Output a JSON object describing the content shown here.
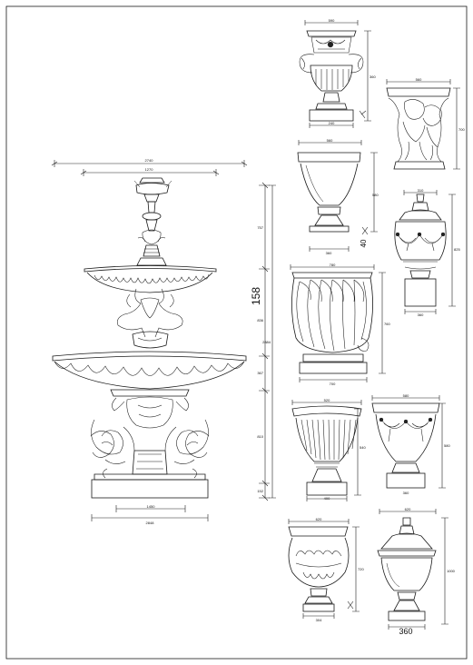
{
  "drawing": {
    "line_color": "#1a1a1a",
    "background": "#ffffff"
  },
  "fountain": {
    "dims": {
      "top_overall": "2740",
      "top_inner": "1270",
      "seg_1": "757",
      "seg_2": "836",
      "seg_3": "367",
      "seg_4": "810",
      "seg_5": "152",
      "total_height": "2884",
      "side_large": "158",
      "base_inner": "1450",
      "base_outer": "2848"
    }
  },
  "urns": {
    "u1": {
      "w": "590",
      "h": "360",
      "base": "240"
    },
    "u2": {
      "w": "560",
      "h": "700"
    },
    "u3": {
      "w": "560",
      "h": "580",
      "base": "360",
      "side": "40"
    },
    "u4": {
      "w": "310",
      "h": "825",
      "base": "360"
    },
    "u5": {
      "w": "780",
      "h": "760",
      "base": "700"
    },
    "u6": {
      "w": "520",
      "h": "540",
      "base": "400"
    },
    "u7": {
      "w": "580",
      "h": "580",
      "base": "360"
    },
    "u8": {
      "w": "620",
      "h": "720",
      "base": "304"
    },
    "u9": {
      "w": "620",
      "h": "1000",
      "base": "360"
    }
  }
}
